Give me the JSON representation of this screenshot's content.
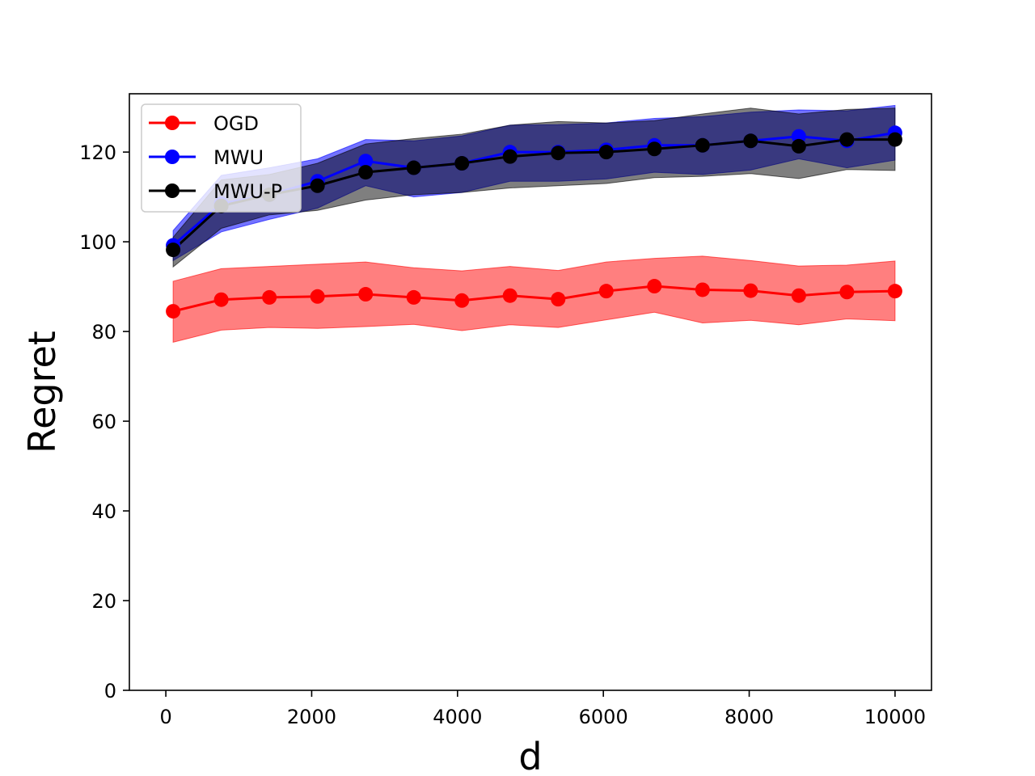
{
  "chart_data": {
    "type": "line",
    "title": "",
    "xlabel": "d",
    "ylabel": "Regret",
    "xlim": [
      -500,
      10500
    ],
    "ylim": [
      0,
      133
    ],
    "xticks": [
      0,
      2000,
      4000,
      6000,
      8000,
      10000
    ],
    "yticks": [
      0,
      20,
      40,
      60,
      80,
      100,
      120
    ],
    "grid": false,
    "legend_position": "top-left",
    "x": [
      100,
      760,
      1420,
      2080,
      2740,
      3400,
      4060,
      4720,
      5380,
      6040,
      6700,
      7360,
      8020,
      8680,
      9340,
      10000
    ],
    "series": [
      {
        "name": "OGD",
        "color": "#ff0000",
        "marker": "circle",
        "values": [
          84.5,
          87.1,
          87.6,
          87.8,
          88.3,
          87.6,
          86.9,
          88.0,
          87.2,
          89.0,
          90.1,
          89.3,
          89.1,
          88.0,
          88.8,
          89.0
        ],
        "band_upper": [
          91.2,
          94.0,
          94.5,
          95.0,
          95.5,
          94.2,
          93.5,
          94.5,
          93.6,
          95.5,
          96.3,
          96.8,
          95.8,
          94.6,
          94.8,
          95.7
        ],
        "band_lower": [
          77.6,
          80.3,
          80.9,
          80.7,
          81.1,
          81.6,
          80.2,
          81.5,
          80.9,
          82.6,
          84.3,
          81.9,
          82.5,
          81.5,
          82.8,
          82.4
        ]
      },
      {
        "name": "MWU",
        "color": "#0000ff",
        "marker": "circle",
        "values": [
          99.2,
          108.5,
          110.5,
          113.5,
          118.0,
          116.5,
          117.5,
          120.0,
          120.0,
          120.5,
          121.5,
          121.5,
          122.5,
          123.5,
          122.5,
          124.3
        ],
        "band_upper": [
          102.5,
          114.8,
          116.5,
          118.5,
          122.8,
          122.5,
          123.6,
          126.0,
          126.1,
          126.5,
          127.5,
          127.9,
          128.9,
          129.4,
          129.2,
          130.4
        ],
        "band_lower": [
          95.8,
          102.2,
          105.0,
          107.5,
          112.5,
          110.0,
          111.0,
          113.5,
          113.5,
          114.0,
          115.5,
          115.0,
          116.0,
          118.5,
          116.5,
          118.2
        ]
      },
      {
        "name": "MWU-P",
        "color": "#000000",
        "marker": "circle",
        "values": [
          98.2,
          108.0,
          110.5,
          112.5,
          115.5,
          116.5,
          117.5,
          119.0,
          119.8,
          120.0,
          120.7,
          121.5,
          122.5,
          121.3,
          122.8,
          122.8
        ],
        "band_upper": [
          101.0,
          113.8,
          115.0,
          117.5,
          121.8,
          123.0,
          124.0,
          126.0,
          126.8,
          126.5,
          127.0,
          128.5,
          129.8,
          128.5,
          129.5,
          129.8
        ],
        "band_lower": [
          94.4,
          103.0,
          106.0,
          107.0,
          109.3,
          110.5,
          111.0,
          112.0,
          112.5,
          113.0,
          114.3,
          114.6,
          115.2,
          114.1,
          116.1,
          115.9
        ]
      }
    ]
  }
}
